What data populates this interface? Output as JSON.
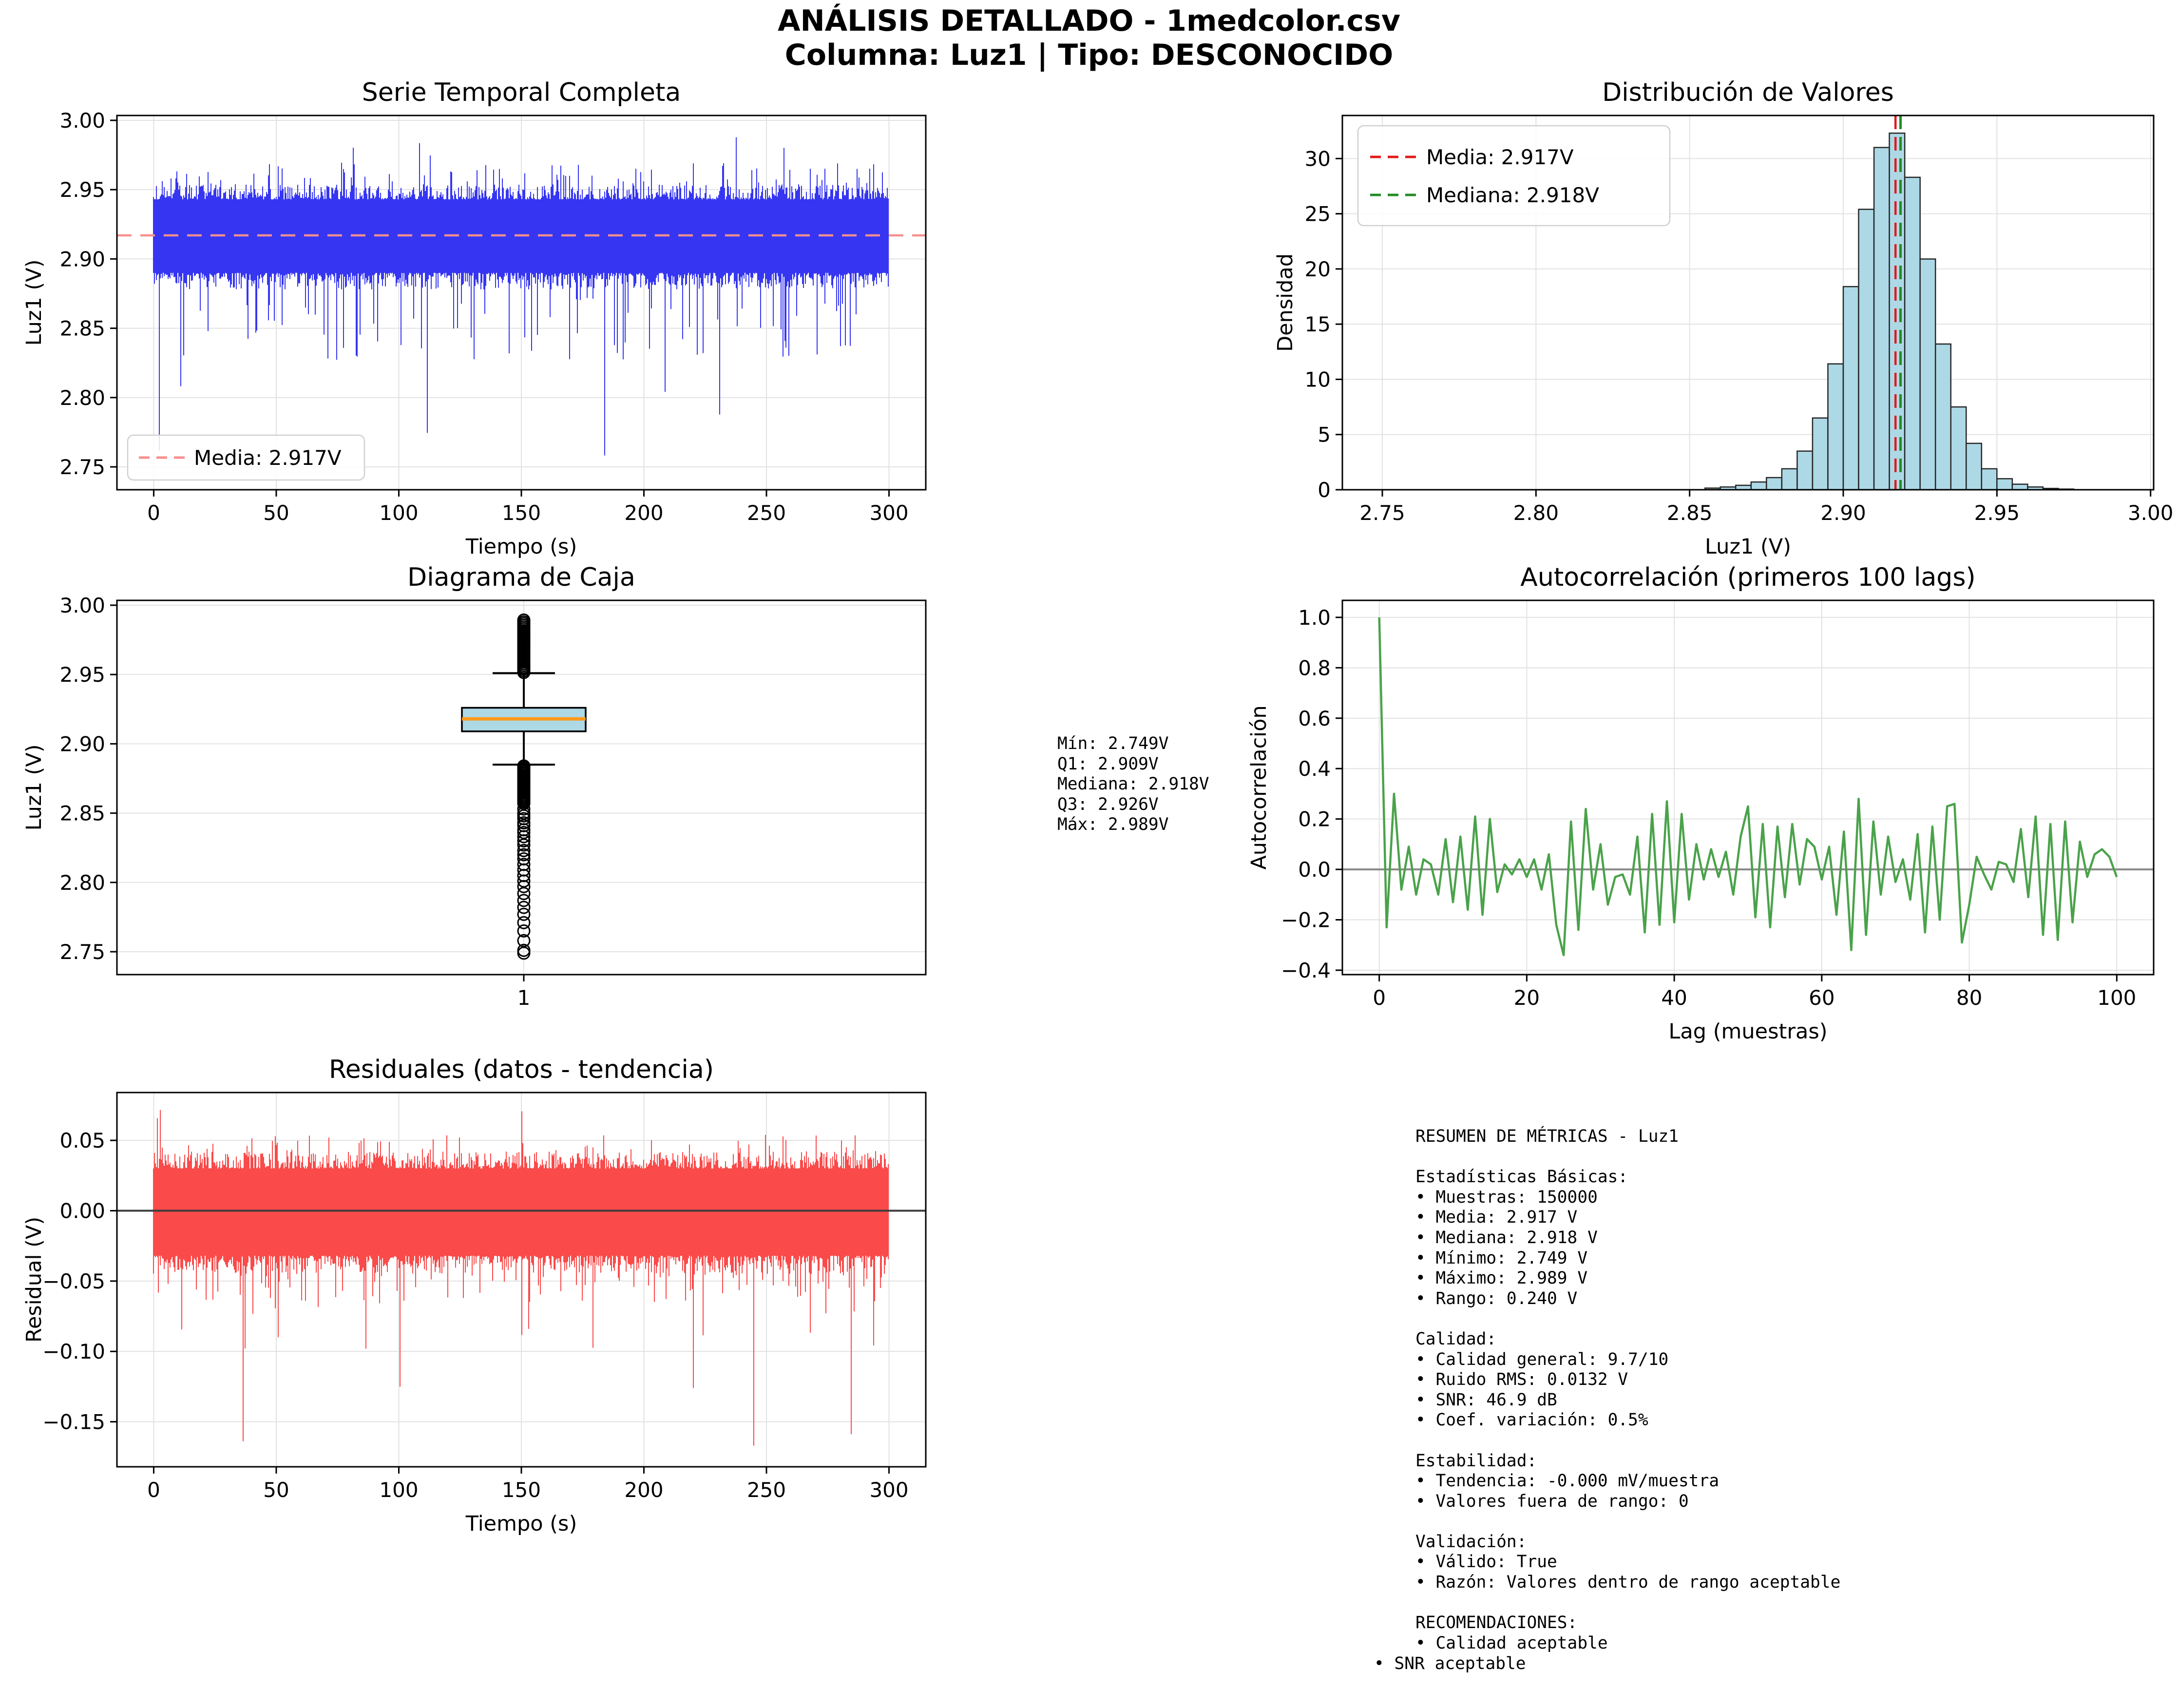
{
  "header": {
    "title_line1": "ANÁLISIS DETALLADO - 1medcolor.csv",
    "title_line2": "Columna: Luz1 | Tipo: DESCONOCIDO"
  },
  "palette": {
    "series_blue": "#3636f2",
    "mean_dash_light": "#f78f8f",
    "mean_red": "#e41818",
    "median_green": "#228b22",
    "hist_fill": "#add8e6",
    "hist_edge": "#262626",
    "box_fill": "#add8e6",
    "box_median_orange": "#ff9a1a",
    "acf_green": "#4aa24a",
    "resid_red": "#fa4a4a",
    "grid": "#e2e2e2",
    "axis": "#000000",
    "zero_gray": "#8a8a8a",
    "zero_dark": "#3c3c3c",
    "legend_border": "#d0d0d0"
  },
  "chart_data": [
    {
      "id": "timeseries",
      "type": "line",
      "title": "Serie Temporal Completa",
      "xlabel": "Tiempo (s)",
      "ylabel": "Luz1 (V)",
      "xlim": [
        -15,
        315
      ],
      "ylim": [
        2.7335,
        3.0035
      ],
      "xticks": [
        0,
        50,
        100,
        150,
        200,
        250,
        300
      ],
      "xtick_labels": [
        "0",
        "50",
        "100",
        "150",
        "200",
        "250",
        "300"
      ],
      "yticks": [
        2.75,
        2.8,
        2.85,
        2.9,
        2.95,
        3.0
      ],
      "ytick_labels": [
        "2.75",
        "2.80",
        "2.85",
        "2.90",
        "2.95",
        "3.00"
      ],
      "grid": true,
      "mean_line": 2.917,
      "legend": {
        "position": "lower-left",
        "entries": [
          {
            "label": "Media: 2.917V",
            "style": "dashed-red"
          }
        ]
      },
      "signal": {
        "x_range": [
          0,
          300
        ],
        "mean": 2.917,
        "band_high": 2.949,
        "band_low": 2.886,
        "upper_spike_max": 2.989,
        "lower_spike_min": 2.749
      }
    },
    {
      "id": "histogram",
      "type": "bar",
      "title": "Distribución de Valores",
      "xlabel": "Luz1 (V)",
      "ylabel": "Densidad",
      "xlim": [
        2.737,
        3.001
      ],
      "ylim": [
        0,
        33.9
      ],
      "xticks": [
        2.75,
        2.8,
        2.85,
        2.9,
        2.95,
        3.0
      ],
      "xtick_labels": [
        "2.75",
        "2.80",
        "2.85",
        "2.90",
        "2.95",
        "3.00"
      ],
      "yticks": [
        0,
        5,
        10,
        15,
        20,
        25,
        30
      ],
      "ytick_labels": [
        "0",
        "5",
        "10",
        "15",
        "20",
        "25",
        "30"
      ],
      "grid": true,
      "bin_start": 2.855,
      "bin_width": 0.005,
      "densities": [
        0.15,
        0.25,
        0.4,
        0.7,
        1.1,
        1.9,
        3.5,
        6.5,
        11.4,
        18.4,
        25.4,
        31.0,
        32.3,
        28.3,
        20.9,
        13.2,
        7.5,
        4.2,
        1.9,
        1.0,
        0.5,
        0.25,
        0.12,
        0.06
      ],
      "mean_line": {
        "value": 2.917,
        "label": "Media: 2.917V"
      },
      "median_line": {
        "value": 2.918,
        "label": "Mediana: 2.918V"
      },
      "legend_position": "upper-left"
    },
    {
      "id": "boxplot",
      "type": "box",
      "title": "Diagrama de Caja",
      "ylabel": "Luz1 (V)",
      "xtick_label": "1",
      "xlim": [
        0,
        2
      ],
      "ylim": [
        2.7335,
        3.0035
      ],
      "yticks": [
        2.75,
        2.8,
        2.85,
        2.9,
        2.95,
        3.0
      ],
      "ytick_labels": [
        "2.75",
        "2.80",
        "2.85",
        "2.90",
        "2.95",
        "3.00"
      ],
      "grid": true,
      "stats": {
        "min": 2.749,
        "q1": 2.909,
        "median": 2.918,
        "q3": 2.926,
        "max": 2.989,
        "whisker_low": 2.885,
        "whisker_high": 2.951
      },
      "outliers": {
        "high_dense": [
          2.9515,
          2.988,
          30
        ],
        "high_max": 2.9893,
        "low_dense": [
          2.884,
          2.857,
          26
        ],
        "low_sparse": [
          2.853,
          2.85,
          2.848,
          2.846,
          2.843,
          2.841,
          2.838,
          2.836,
          2.833,
          2.83,
          2.827,
          2.823,
          2.82,
          2.817,
          2.813,
          2.809,
          2.805,
          2.801,
          2.797,
          2.792,
          2.787,
          2.782,
          2.777,
          2.771,
          2.765,
          2.758,
          2.751,
          2.749
        ]
      }
    },
    {
      "id": "autocorrelation",
      "type": "line",
      "title": "Autocorrelación (primeros 100 lags)",
      "xlabel": "Lag (muestras)",
      "ylabel": "Autocorrelación",
      "xlim": [
        -5,
        105
      ],
      "ylim": [
        -0.4175,
        1.0675
      ],
      "xticks": [
        0,
        20,
        40,
        60,
        80,
        100
      ],
      "xtick_labels": [
        "0",
        "20",
        "40",
        "60",
        "80",
        "100"
      ],
      "yticks": [
        -0.4,
        -0.2,
        0.0,
        0.2,
        0.4,
        0.6,
        0.8,
        1.0
      ],
      "ytick_labels": [
        "−0.4",
        "−0.2",
        "0.0",
        "0.2",
        "0.4",
        "0.6",
        "0.8",
        "1.0"
      ],
      "grid": true,
      "zero_line": true,
      "values": [
        1.0,
        -0.23,
        0.3,
        -0.08,
        0.09,
        -0.1,
        0.04,
        0.02,
        -0.1,
        0.12,
        -0.13,
        0.13,
        -0.16,
        0.21,
        -0.18,
        0.2,
        -0.09,
        0.02,
        -0.02,
        0.04,
        -0.03,
        0.04,
        -0.08,
        0.06,
        -0.22,
        -0.34,
        0.19,
        -0.24,
        0.24,
        -0.08,
        0.1,
        -0.14,
        -0.03,
        -0.02,
        -0.1,
        0.13,
        -0.25,
        0.22,
        -0.22,
        0.27,
        -0.21,
        0.22,
        -0.12,
        0.1,
        -0.04,
        0.08,
        -0.03,
        0.07,
        -0.1,
        0.13,
        0.25,
        -0.19,
        0.18,
        -0.23,
        0.17,
        -0.11,
        0.18,
        -0.06,
        0.12,
        0.09,
        -0.04,
        0.09,
        -0.18,
        0.15,
        -0.32,
        0.28,
        -0.26,
        0.19,
        -0.1,
        0.13,
        -0.05,
        0.04,
        -0.12,
        0.14,
        -0.25,
        0.17,
        -0.2,
        0.25,
        0.26,
        -0.29,
        -0.14,
        0.05,
        -0.02,
        -0.08,
        0.03,
        0.02,
        -0.05,
        0.16,
        -0.11,
        0.21,
        -0.26,
        0.18,
        -0.28,
        0.19,
        -0.21,
        0.11,
        -0.03,
        0.06,
        0.08,
        0.05,
        -0.03
      ]
    },
    {
      "id": "residuals",
      "type": "line",
      "title": "Residuales (datos - tendencia)",
      "xlabel": "Tiempo (s)",
      "ylabel": "Residual (V)",
      "xlim": [
        -15,
        315
      ],
      "ylim": [
        -0.182,
        0.084
      ],
      "xticks": [
        0,
        50,
        100,
        150,
        200,
        250,
        300
      ],
      "xtick_labels": [
        "0",
        "50",
        "100",
        "150",
        "200",
        "250",
        "300"
      ],
      "yticks": [
        0.05,
        0.0,
        -0.05,
        -0.1,
        -0.15
      ],
      "ytick_labels": [
        "0.05",
        "0.00",
        "−0.05",
        "−0.10",
        "−0.15"
      ],
      "grid": true,
      "zero_line": true,
      "signal": {
        "x_range": [
          0,
          300
        ],
        "mean": 0,
        "band_high": 0.033,
        "band_low": -0.036,
        "upper_spike_max": 0.072,
        "lower_spike_min": -0.17
      }
    }
  ],
  "box_stats_text": {
    "body": "Mín: 2.749V\nQ1: 2.909V\nMediana: 2.918V\nQ3: 2.926V\nMáx: 2.989V"
  },
  "metrics_panel": {
    "body": "RESUMEN DE MÉTRICAS - Luz1\n\nEstadísticas Básicas:\n• Muestras: 150000\n• Media: 2.917 V\n• Mediana: 2.918 V\n• Mínimo: 2.749 V\n• Máximo: 2.989 V\n• Rango: 0.240 V\n\nCalidad:\n• Calidad general: 9.7/10\n• Ruido RMS: 0.0132 V\n• SNR: 46.9 dB\n• Coef. variación: 0.5%\n\nEstabilidad:\n• Tendencia: -0.000 mV/muestra\n• Valores fuera de rango: 0\n\nValidación:\n• Válido: True\n• Razón: Valores dentro de rango aceptable\n\nRECOMENDACIONES:\n• Calidad aceptable",
    "last_line": "• SNR aceptable"
  }
}
